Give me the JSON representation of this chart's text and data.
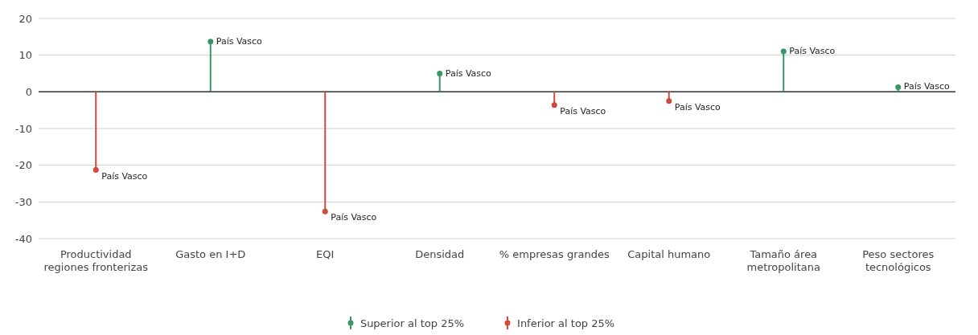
{
  "chart_data": {
    "type": "lollipop",
    "categories": [
      "Productividad regiones fronterizas",
      "Gasto en I+D",
      "EQI",
      "Densidad",
      "% empresas grandes",
      "Capital humano",
      "Tamaño área metropolitana",
      "Peso sectores tecnológicos"
    ],
    "series": [
      {
        "name": "Superior al top 25%",
        "color": "#3a9565",
        "values": [
          null,
          13.7,
          null,
          5,
          null,
          null,
          11,
          1.3
        ],
        "value_labels": [
          null,
          "País Vasco",
          null,
          "País Vasco",
          null,
          null,
          "País Vasco",
          "País Vasco"
        ]
      },
      {
        "name": "Inferior al top 25%",
        "color": "#d04a3c",
        "values": [
          -21.3,
          null,
          -32.6,
          null,
          -3.6,
          -2.5,
          null,
          null
        ],
        "value_labels": [
          "País Vasco",
          null,
          "País Vasco",
          null,
          "País Vasco",
          "País Vasco",
          null,
          null
        ]
      }
    ],
    "ylim": [
      -40,
      20
    ],
    "yticks": [
      -40,
      -30,
      -20,
      -10,
      0,
      10,
      20
    ],
    "grid": "y",
    "legend": "bottom",
    "marker": "circle",
    "ref_lines": [
      {
        "axis": "y",
        "value": 0,
        "color": "#333333"
      }
    ]
  }
}
